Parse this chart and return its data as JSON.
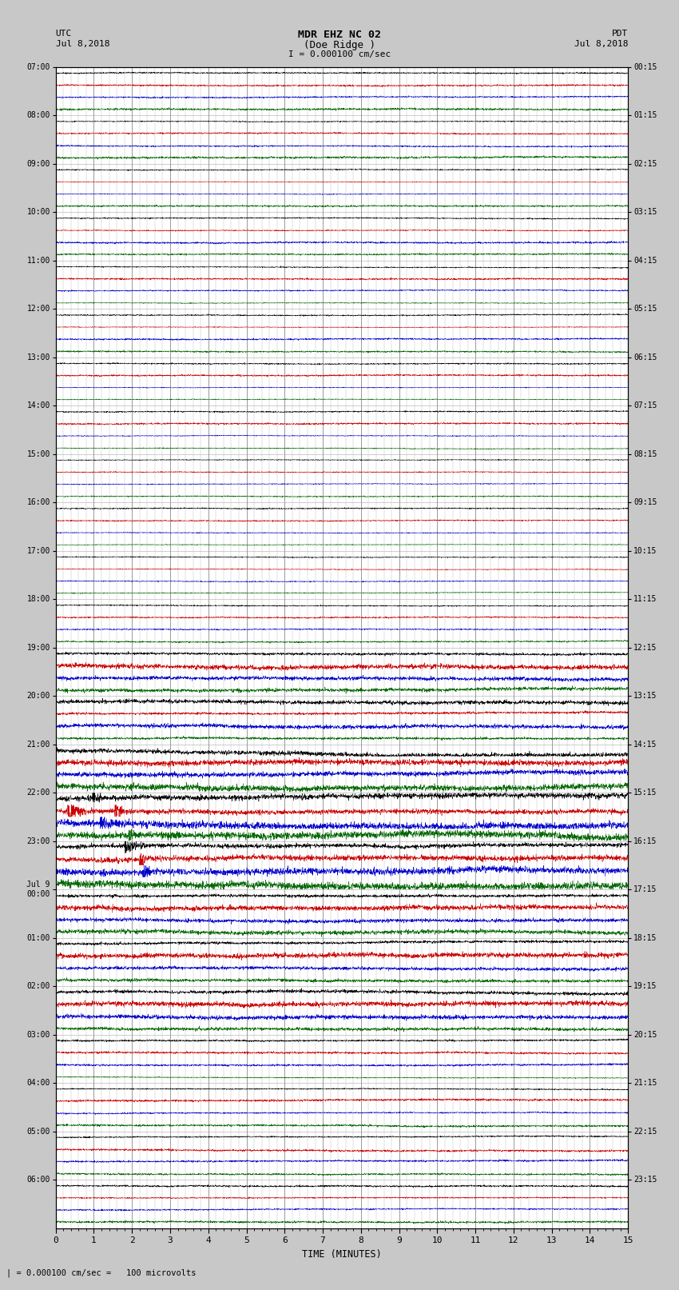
{
  "title_line1": "MDR EHZ NC 02",
  "title_line2": "(Doe Ridge )",
  "scale_label": "I = 0.000100 cm/sec",
  "bottom_label": "| = 0.000100 cm/sec =   100 microvolts",
  "xlabel": "TIME (MINUTES)",
  "left_label": "UTC",
  "left_date": "Jul 8,2018",
  "right_label": "PDT",
  "right_date": "Jul 8,2018",
  "xmin": 0,
  "xmax": 15,
  "bg_color": "#c8c8c8",
  "plot_bg": "#ffffff",
  "grid_color": "#888888",
  "trace_colors": [
    "#000000",
    "#cc0000",
    "#0000cc",
    "#006600"
  ],
  "left_times_labeled": [
    "07:00",
    "08:00",
    "09:00",
    "10:00",
    "11:00",
    "12:00",
    "13:00",
    "14:00",
    "15:00",
    "16:00",
    "17:00",
    "18:00",
    "19:00",
    "20:00",
    "21:00",
    "22:00",
    "23:00",
    "Jul 9\n00:00",
    "01:00",
    "02:00",
    "03:00",
    "04:00",
    "05:00",
    "06:00"
  ],
  "right_times_labeled": [
    "00:15",
    "01:15",
    "02:15",
    "03:15",
    "04:15",
    "05:15",
    "06:15",
    "07:15",
    "08:15",
    "09:15",
    "10:15",
    "11:15",
    "12:15",
    "13:15",
    "14:15",
    "15:15",
    "16:15",
    "17:15",
    "18:15",
    "19:15",
    "20:15",
    "21:15",
    "22:15",
    "23:15"
  ],
  "num_rows": 96,
  "noise_seed": 42,
  "amplitude_scale": 0.38
}
